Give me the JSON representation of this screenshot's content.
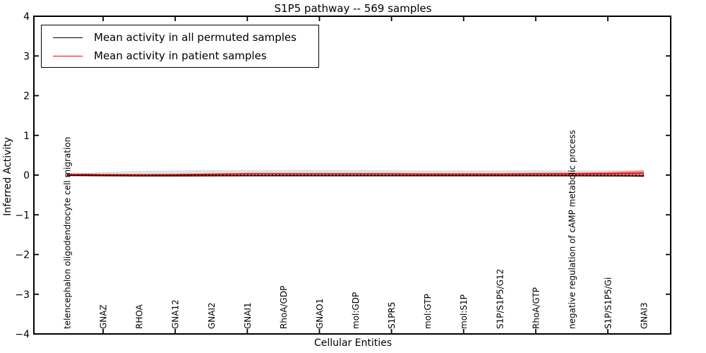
{
  "figure": {
    "title": "S1P5 pathway -- 569 samples"
  },
  "axes": {
    "xlabel": "Cellular Entities",
    "ylabel": "Inferred Activity"
  },
  "legend": {
    "position": "upper left",
    "items": [
      {
        "label": "Mean activity in all permuted samples",
        "color": "#000000"
      },
      {
        "label": "Mean activity in patient samples",
        "color": "#ff0000"
      }
    ]
  },
  "chart_data": {
    "type": "line",
    "title": "S1P5 pathway -- 569 samples",
    "xlabel": "Cellular Entities",
    "ylabel": "Inferred Activity",
    "ylim": [
      -4,
      4
    ],
    "yticks": [
      4,
      3,
      2,
      1,
      0,
      -1,
      -2,
      -3,
      -4
    ],
    "ytick_labels": [
      "4",
      "3",
      "2",
      "1",
      "0",
      "−1",
      "−2",
      "−3",
      "−4"
    ],
    "xtick_indices": [
      1,
      3,
      5,
      7,
      9,
      11,
      13,
      15
    ],
    "grid": false,
    "legend_position": "upper left",
    "zero_line": {
      "y": 0,
      "style": "dotted",
      "color": "#000000"
    },
    "categories": [
      "telencephalon oligodendrocyte cell migration",
      "GNAZ",
      "RHOA",
      "GNA12",
      "GNAI2",
      "GNAI1",
      "RhoA/GDP",
      "GNAO1",
      "mol:GDP",
      "S1PR5",
      "mol:GTP",
      "mol:S1P",
      "S1P/S1P5/G12",
      "RhoA/GTP",
      "negative regulation of cAMP metabolic process",
      "S1P/S1P5/Gi",
      "GNAI3"
    ],
    "series": [
      {
        "name": "Mean activity in all permuted samples",
        "color": "#000000",
        "band_color": "#aaaaaa",
        "band_opacity": 0.35,
        "values": [
          -0.01,
          -0.015,
          -0.02,
          -0.02,
          -0.018,
          -0.016,
          -0.015,
          -0.015,
          -0.015,
          -0.015,
          -0.015,
          -0.015,
          -0.015,
          -0.015,
          -0.015,
          -0.018,
          -0.022
        ],
        "band_lo": [
          -0.02,
          -0.03,
          -0.035,
          -0.035,
          -0.035,
          -0.035,
          -0.035,
          -0.035,
          -0.035,
          -0.035,
          -0.035,
          -0.035,
          -0.035,
          -0.04,
          -0.045,
          -0.05,
          -0.06
        ],
        "band_hi": [
          0.03,
          0.08,
          0.11,
          0.12,
          0.13,
          0.13,
          0.13,
          0.13,
          0.13,
          0.12,
          0.12,
          0.12,
          0.12,
          0.12,
          0.12,
          0.12,
          0.11
        ]
      },
      {
        "name": "Mean activity in patient samples",
        "color": "#ff0000",
        "band_color": "#ff0000",
        "band_opacity": 0.3,
        "values": [
          0.02,
          0.01,
          0.005,
          0.01,
          0.02,
          0.03,
          0.03,
          0.028,
          0.028,
          0.028,
          0.025,
          0.025,
          0.025,
          0.03,
          0.03,
          0.035,
          0.05
        ],
        "band_lo": [
          0.005,
          -0.005,
          -0.01,
          -0.005,
          0.005,
          0.01,
          0.01,
          0.008,
          0.008,
          0.008,
          0.005,
          0.005,
          0.005,
          0.005,
          0.0,
          -0.005,
          -0.05
        ],
        "band_hi": [
          0.035,
          0.025,
          0.02,
          0.03,
          0.04,
          0.055,
          0.05,
          0.048,
          0.048,
          0.048,
          0.045,
          0.045,
          0.045,
          0.055,
          0.065,
          0.08,
          0.13
        ]
      }
    ]
  }
}
